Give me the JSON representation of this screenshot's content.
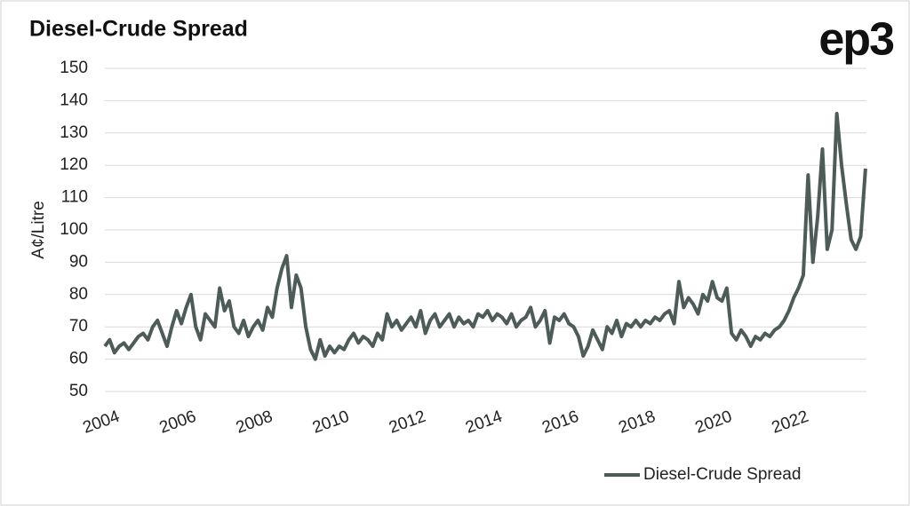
{
  "chart_data": {
    "type": "line",
    "title": "Diesel-Crude Spread",
    "logo": "ep3",
    "y_label": "A¢/Litre",
    "x": [
      2004,
      2004.125,
      2004.25,
      2004.375,
      2004.5,
      2004.625,
      2004.75,
      2004.875,
      2005,
      2005.125,
      2005.25,
      2005.375,
      2005.5,
      2005.625,
      2005.75,
      2005.875,
      2006,
      2006.125,
      2006.25,
      2006.375,
      2006.5,
      2006.625,
      2006.75,
      2006.875,
      2007,
      2007.125,
      2007.25,
      2007.375,
      2007.5,
      2007.625,
      2007.75,
      2007.875,
      2008,
      2008.125,
      2008.25,
      2008.375,
      2008.5,
      2008.625,
      2008.75,
      2008.875,
      2009,
      2009.125,
      2009.25,
      2009.375,
      2009.5,
      2009.625,
      2009.75,
      2009.875,
      2010,
      2010.125,
      2010.25,
      2010.375,
      2010.5,
      2010.625,
      2010.75,
      2010.875,
      2011,
      2011.125,
      2011.25,
      2011.375,
      2011.5,
      2011.625,
      2011.75,
      2011.875,
      2012,
      2012.125,
      2012.25,
      2012.375,
      2012.5,
      2012.625,
      2012.75,
      2012.875,
      2013,
      2013.125,
      2013.25,
      2013.375,
      2013.5,
      2013.625,
      2013.75,
      2013.875,
      2014,
      2014.125,
      2014.25,
      2014.375,
      2014.5,
      2014.625,
      2014.75,
      2014.875,
      2015,
      2015.125,
      2015.25,
      2015.375,
      2015.5,
      2015.625,
      2015.75,
      2015.875,
      2016,
      2016.125,
      2016.25,
      2016.375,
      2016.5,
      2016.625,
      2016.75,
      2016.875,
      2017,
      2017.125,
      2017.25,
      2017.375,
      2017.5,
      2017.625,
      2017.75,
      2017.875,
      2018,
      2018.125,
      2018.25,
      2018.375,
      2018.5,
      2018.625,
      2018.75,
      2018.875,
      2019,
      2019.125,
      2019.25,
      2019.375,
      2019.5,
      2019.625,
      2019.75,
      2019.875,
      2020,
      2020.125,
      2020.25,
      2020.375,
      2020.5,
      2020.625,
      2020.75,
      2020.875,
      2021,
      2021.125,
      2021.25,
      2021.375,
      2021.5,
      2021.625,
      2021.75,
      2021.875,
      2022,
      2022.125,
      2022.25,
      2022.375,
      2022.5,
      2022.625,
      2022.75,
      2022.875,
      2023,
      2023.125,
      2023.25,
      2023.375,
      2023.5,
      2023.625,
      2023.75,
      2023.875
    ],
    "series": [
      {
        "name": "Diesel-Crude Spread",
        "color": "#4d5b59",
        "values": [
          64,
          66,
          62,
          64,
          65,
          63,
          65,
          67,
          68,
          66,
          70,
          72,
          68,
          64,
          70,
          75,
          71,
          76,
          80,
          70,
          66,
          74,
          72,
          70,
          82,
          75,
          78,
          70,
          68,
          72,
          67,
          70,
          72,
          69,
          76,
          73,
          82,
          88,
          92,
          76,
          86,
          82,
          70,
          63,
          60,
          66,
          61,
          64,
          62,
          64,
          63,
          66,
          68,
          65,
          67,
          66,
          64,
          68,
          66,
          74,
          70,
          72,
          69,
          71,
          73,
          70,
          75,
          68,
          72,
          74,
          70,
          72,
          74,
          70,
          73,
          71,
          72,
          70,
          74,
          73,
          75,
          72,
          74,
          73,
          71,
          74,
          70,
          72,
          73,
          76,
          70,
          72,
          75,
          65,
          73,
          72,
          74,
          71,
          70,
          67,
          61,
          64,
          69,
          66,
          63,
          70,
          68,
          72,
          67,
          71,
          70,
          72,
          70,
          72,
          71,
          73,
          72,
          74,
          75,
          71,
          84,
          76,
          79,
          77,
          74,
          80,
          78,
          84,
          79,
          78,
          82,
          68,
          66,
          69,
          67,
          64,
          67,
          66,
          68,
          67,
          69,
          70,
          72,
          75,
          79,
          82,
          86,
          117,
          90,
          104,
          125,
          94,
          100,
          136,
          120,
          108,
          97,
          94,
          98,
          119
        ]
      }
    ],
    "xlim": [
      2004,
      2023.9
    ],
    "xticks": [
      2004,
      2006,
      2008,
      2010,
      2012,
      2014,
      2016,
      2018,
      2020,
      2022
    ],
    "ylim": [
      50,
      150
    ],
    "yticks": [
      50,
      60,
      70,
      80,
      90,
      100,
      110,
      120,
      130,
      140,
      150
    ],
    "grid": true,
    "legend": "bottom-right"
  }
}
